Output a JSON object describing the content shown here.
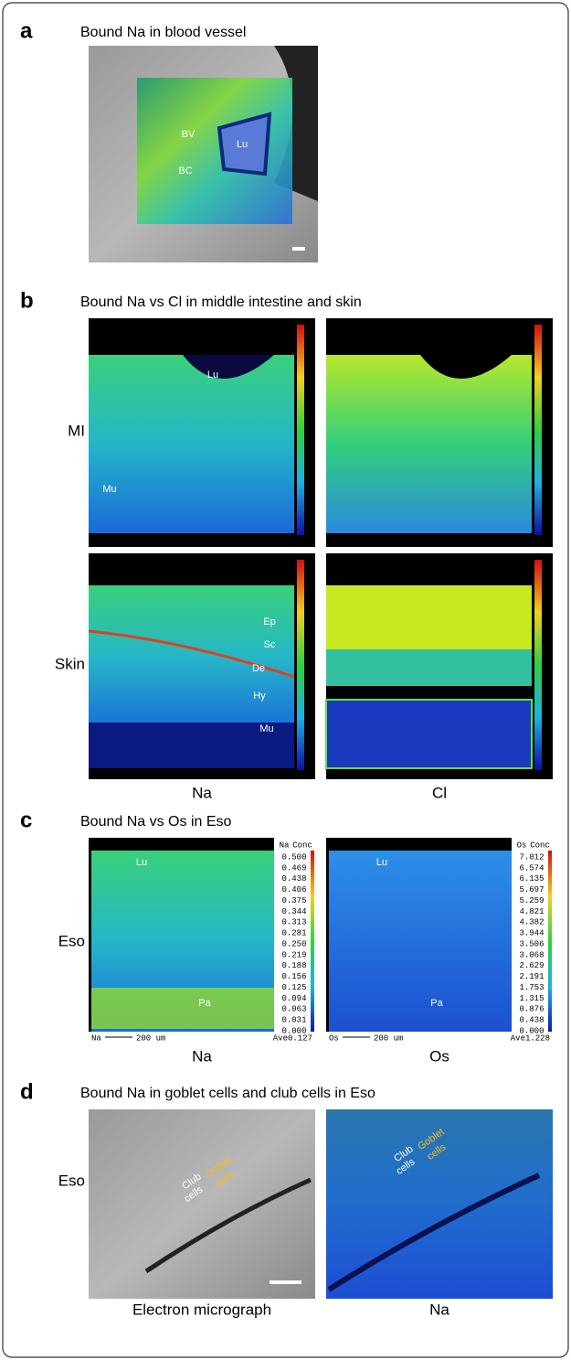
{
  "panels": [
    {
      "letter": "a",
      "title": "Bound Na in blood vessel",
      "labels": [
        "BV",
        "Lu",
        "BC"
      ]
    },
    {
      "letter": "b",
      "title": "Bound Na vs Cl in middle intestine and skin",
      "rows": [
        "MI",
        "Skin"
      ],
      "columns": [
        "Na",
        "Cl"
      ],
      "labels": [
        "Lu",
        "Mu",
        "Ep",
        "Sc",
        "De",
        "Hy",
        "Mu"
      ]
    },
    {
      "letter": "c",
      "title": "Bound Na vs Os in Eso",
      "rows": [
        "Eso"
      ],
      "columns": [
        "Na",
        "Os"
      ],
      "labels": [
        "Lu",
        "Pa",
        "Lu",
        "Pa"
      ],
      "maps": [
        {
          "element": "Na",
          "unit": "Conc",
          "scale": [
            "0.500",
            "0.469",
            "0.438",
            "0.406",
            "0.375",
            "0.344",
            "0.313",
            "0.281",
            "0.250",
            "0.219",
            "0.188",
            "0.156",
            "0.125",
            "0.094",
            "0.063",
            "0.031",
            "0.000"
          ],
          "bar_element": "Na",
          "scale_bar": "200 um",
          "average": "Ave0.127"
        },
        {
          "element": "Os",
          "unit": "Conc",
          "scale": [
            "7.012",
            "6.574",
            "6.135",
            "5.697",
            "5.259",
            "4.821",
            "4.382",
            "3.944",
            "3.506",
            "3.068",
            "2.629",
            "2.191",
            "1.753",
            "1.315",
            "0.876",
            "0.438",
            "0.000"
          ],
          "bar_element": "Os",
          "scale_bar": "200 um",
          "average": "Ave1.228"
        }
      ]
    },
    {
      "letter": "d",
      "title": "Bound Na in goblet cells and club cells in Eso",
      "rows": [
        "Eso"
      ],
      "columns": [
        "Electron micrograph",
        "Na"
      ],
      "images": [
        {
          "labels": [
            "Club",
            "cells",
            "Goblet",
            "cells"
          ]
        },
        {
          "labels": [
            "Club",
            "cells",
            "Goblet",
            "cells"
          ]
        }
      ]
    }
  ]
}
